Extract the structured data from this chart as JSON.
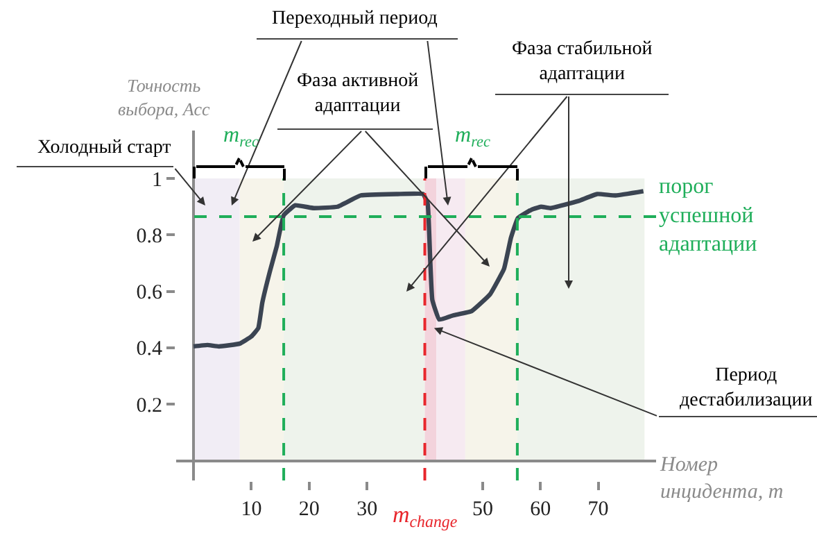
{
  "chart_data": {
    "type": "line",
    "ylabel": "Точность\nвыбора, Acc",
    "xlabel": "Номер\nинцидента, m",
    "x": [
      0,
      2.4,
      4.4,
      8,
      10,
      11.2,
      11.9,
      13.2,
      14.4,
      15.6,
      17.6,
      20.8,
      24.9,
      28.9,
      35.3,
      39.7,
      40.5,
      40.9,
      41.3,
      42.5,
      44.9,
      48.1,
      51.3,
      53.7,
      54.9,
      56.1,
      58.5,
      60.1,
      61.7,
      66.5,
      69.8,
      73,
      77.8
    ],
    "series": [
      {
        "color": "#3b4452",
        "values": [
          0.405,
          0.41,
          0.405,
          0.415,
          0.44,
          0.47,
          0.56,
          0.67,
          0.76,
          0.87,
          0.905,
          0.895,
          0.9,
          0.94,
          0.945,
          0.945,
          0.91,
          0.73,
          0.57,
          0.5,
          0.515,
          0.53,
          0.59,
          0.68,
          0.79,
          0.86,
          0.89,
          0.9,
          0.895,
          0.92,
          0.945,
          0.94,
          0.955
        ]
      }
    ],
    "xlim": [
      -3,
      80
    ],
    "ylim": [
      -0.07,
      1.17
    ],
    "xticks": [
      10,
      20,
      30,
      50,
      60,
      70
    ],
    "yticks": [
      0.2,
      0.4,
      0.6,
      0.8,
      1
    ],
    "grid": false,
    "legend": false,
    "marker": "none",
    "line_style": "solid",
    "ref_lines": [
      {
        "axis": "y",
        "value": 0.865,
        "label": "порог\nуспешной\nадаптации",
        "color": "#1fae5a",
        "line_style": "dashed"
      },
      {
        "axis": "x",
        "value": 15.6,
        "color": "#1fae5a",
        "line_style": "dashed"
      },
      {
        "axis": "x",
        "value": 56,
        "color": "#1fae5a",
        "line_style": "dashed"
      },
      {
        "axis": "x",
        "value": 40,
        "label": "m$_{change}$",
        "color": "#e8262c",
        "line_style": "dashed"
      }
    ],
    "bands": [
      {
        "axis": "x",
        "from": 0,
        "to": 8,
        "color": "#f1edf5"
      },
      {
        "axis": "x",
        "from": 8,
        "to": 15.6,
        "color": "#f6f4ea"
      },
      {
        "axis": "x",
        "from": 15.6,
        "to": 40,
        "color": "#eef3ec"
      },
      {
        "axis": "x",
        "from": 40,
        "to": 42,
        "color": "#f3d3dc"
      },
      {
        "axis": "x",
        "from": 42,
        "to": 47,
        "color": "#f6eaf1"
      },
      {
        "axis": "x",
        "from": 47,
        "to": 56,
        "color": "#f6f4ea"
      },
      {
        "axis": "x",
        "from": 56,
        "to": 78,
        "color": "#eef3ec"
      }
    ],
    "annotations": [
      "Холодный старт",
      "Переходный период",
      "Фаза активной\nадаптации",
      "Фаза стабильной\nадаптации",
      {
        "text": "Период\nдестабилизации",
        "x": 41.6,
        "y": 0.47
      },
      "m$_{rec}$",
      "m$_{rec}$"
    ]
  }
}
